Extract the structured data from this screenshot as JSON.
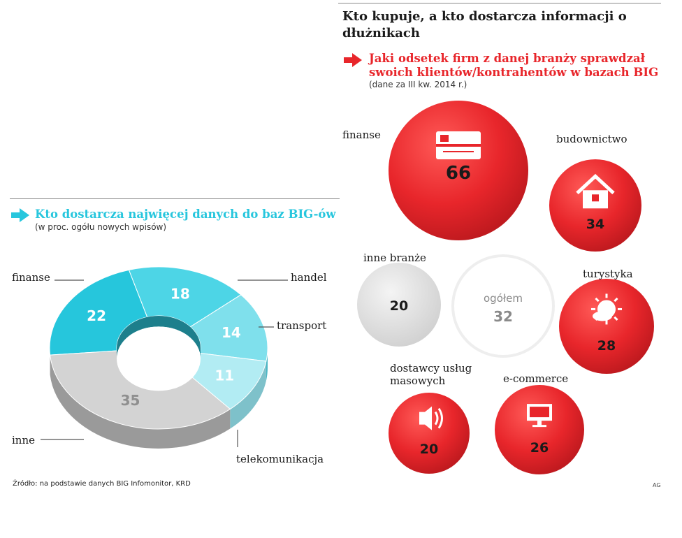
{
  "main_title": "Kto kupuje, a kto dostarcza informacji o dłużnikach",
  "right_section": {
    "title": "Jaki odsetek firm z danej branży sprawdzał swoich klientów/kontrahentów w bazach BIG",
    "subtitle": "(dane za III kw. 2014 r.)"
  },
  "left_section": {
    "title": "Kto dostarcza najwięcej danych do baz BIG-ów",
    "subtitle": "(w proc. ogółu nowych wpisów)"
  },
  "source": "Źródło: na podstawie danych BIG Infomonitor, KRD",
  "credit": "AG",
  "colors": {
    "red": "#e8262b",
    "cyan": "#27c6dd",
    "grey": "#cccccc"
  },
  "chart_data": [
    {
      "type": "pie",
      "variant": "donut",
      "title": "Kto dostarcza najwięcej danych do baz BIG-ów",
      "subtitle": "(w proc. ogółu nowych wpisów)",
      "slices": [
        {
          "label": "finanse",
          "value": 22,
          "value_label": "22",
          "color": "#26c6dc"
        },
        {
          "label": "handel",
          "value": 18,
          "value_label": "18",
          "color": "#4dd5e6"
        },
        {
          "label": "transport",
          "value": 14,
          "value_label": "14",
          "color": "#7fe0ec"
        },
        {
          "label": "telekomunikacja",
          "value": 11,
          "value_label": "11",
          "color": "#b2ecf3"
        },
        {
          "label": "inne",
          "value": 35,
          "value_label": "35",
          "color": "#d3d3d3"
        }
      ]
    },
    {
      "type": "bubble",
      "title": "Jaki odsetek firm z danej branży sprawdzał swoich klientów/kontrahentów w bazach BIG",
      "subtitle": "(dane za III kw. 2014 r.)",
      "items": [
        {
          "label": "finanse",
          "value": 66,
          "value_label": "66",
          "icon": "credit-card-icon",
          "color": "#e8262b"
        },
        {
          "label": "budownictwo",
          "value": 34,
          "value_label": "34",
          "icon": "house-icon",
          "color": "#e8262b"
        },
        {
          "label": "inne branże",
          "value": 20,
          "value_label": "20",
          "icon": "",
          "color": "#e2e2e2"
        },
        {
          "label": "ogółem",
          "value": 32,
          "value_label": "32",
          "icon": "",
          "color": "#ffffff"
        },
        {
          "label": "turystyka",
          "value": 28,
          "value_label": "28",
          "icon": "sun-cloud-icon",
          "color": "#e8262b"
        },
        {
          "label": "dostawcy usług masowych",
          "value": 20,
          "value_label": "20",
          "icon": "speaker-icon",
          "color": "#e8262b"
        },
        {
          "label": "e-commerce",
          "value": 26,
          "value_label": "26",
          "icon": "monitor-icon",
          "color": "#e8262b"
        }
      ]
    }
  ]
}
